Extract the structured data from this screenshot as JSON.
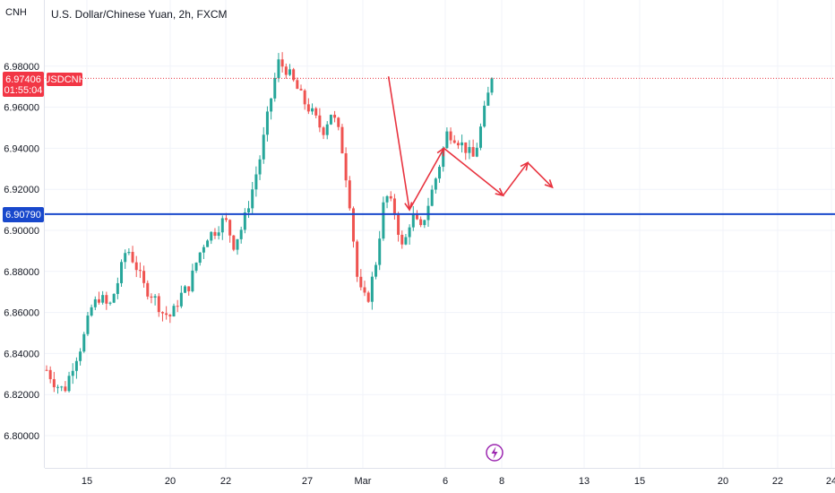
{
  "symbol_short": "CNH",
  "chart_title": "U.S. Dollar/Chinese Yuan, 2h, FXCM",
  "symbol_label": "USDCNH",
  "price_badge": {
    "price": "6.97406",
    "countdown": "01:55:04",
    "color": "#f23645"
  },
  "level_badge": {
    "price": "6.90790",
    "color": "#1848cc"
  },
  "colors": {
    "up": "#26a69a",
    "down": "#ef5350",
    "level": "#1848cc",
    "projection": "#e8333f",
    "event": "#9c27b0"
  },
  "event_icon": "lightning-icon",
  "chart_data": {
    "type": "candlestick",
    "y_ticks": [
      "6.80000",
      "6.82000",
      "6.84000",
      "6.86000",
      "6.88000",
      "6.90000",
      "6.92000",
      "6.94000",
      "6.96000",
      "6.98000"
    ],
    "x_ticks": [
      "15",
      "20",
      "22",
      "27",
      "Mar",
      "6",
      "8",
      "13",
      "15",
      "20",
      "22",
      "24"
    ],
    "ylim": [
      6.795,
      7.001
    ],
    "horizontal_level": 6.9079,
    "last_price": 6.97406,
    "grid": true,
    "path_closes": [
      6.832,
      6.825,
      6.822,
      6.835,
      6.845,
      6.862,
      6.868,
      6.862,
      6.875,
      6.892,
      6.883,
      6.872,
      6.868,
      6.86,
      6.858,
      6.868,
      6.873,
      6.887,
      6.897,
      6.9,
      6.906,
      6.893,
      6.902,
      6.918,
      6.936,
      6.96,
      6.982,
      6.978,
      6.97,
      6.962,
      6.956,
      6.948,
      6.958,
      6.945,
      6.915,
      6.872,
      6.865,
      6.885,
      6.918,
      6.91,
      6.89,
      6.908,
      6.9,
      6.915,
      6.93,
      6.948,
      6.945,
      6.94,
      6.935,
      6.955,
      6.974
    ],
    "projection_points": [
      [
        6.975,
        6.975
      ],
      [
        7.4,
        6.91
      ],
      [
        8.1,
        6.94
      ],
      [
        9.3,
        6.917
      ],
      [
        9.8,
        6.933
      ],
      [
        10.3,
        6.921
      ]
    ]
  }
}
